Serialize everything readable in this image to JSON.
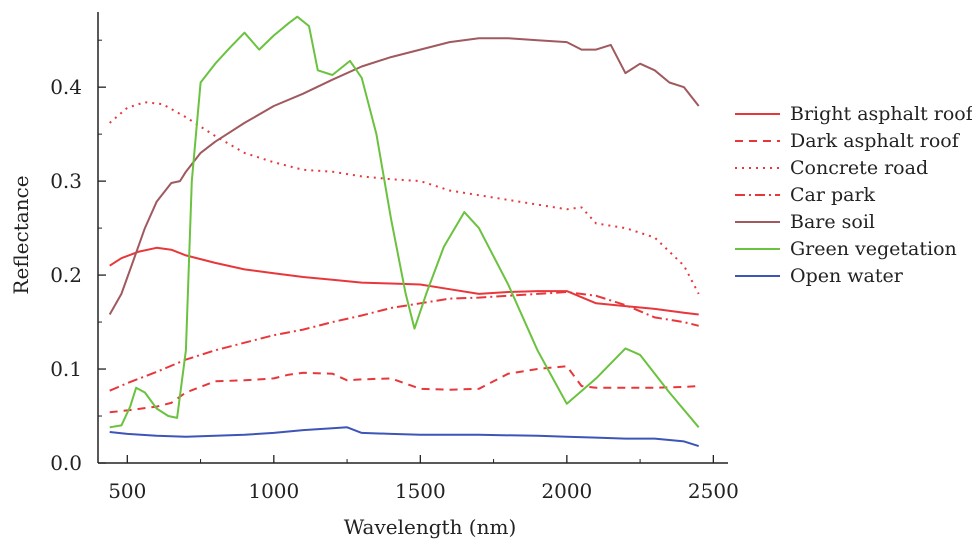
{
  "chart_data": {
    "type": "line",
    "title": "",
    "xlabel": "Wavelength (nm)",
    "ylabel": "Reflectance",
    "xlim": [
      400,
      2550
    ],
    "ylim": [
      0,
      0.48
    ],
    "xticks": [
      500,
      1000,
      1500,
      2000,
      2500
    ],
    "xtick_labels": [
      "500",
      "1000",
      "1500",
      "2000",
      "2500"
    ],
    "yticks": [
      0.0,
      0.1,
      0.2,
      0.3,
      0.4
    ],
    "ytick_labels": [
      "0.0",
      "0.1",
      "0.2",
      "0.3",
      "0.4"
    ],
    "grid": false,
    "legend_position": "right",
    "series": [
      {
        "name": "Bright asphalt roof",
        "color": "#e8373b",
        "dash": "solid",
        "points": [
          [
            440,
            0.21
          ],
          [
            480,
            0.218
          ],
          [
            540,
            0.225
          ],
          [
            600,
            0.229
          ],
          [
            650,
            0.227
          ],
          [
            700,
            0.221
          ],
          [
            800,
            0.213
          ],
          [
            900,
            0.206
          ],
          [
            1000,
            0.202
          ],
          [
            1100,
            0.198
          ],
          [
            1200,
            0.195
          ],
          [
            1300,
            0.192
          ],
          [
            1400,
            0.191
          ],
          [
            1500,
            0.19
          ],
          [
            1600,
            0.185
          ],
          [
            1700,
            0.18
          ],
          [
            1800,
            0.182
          ],
          [
            1900,
            0.183
          ],
          [
            2000,
            0.183
          ],
          [
            2100,
            0.17
          ],
          [
            2200,
            0.167
          ],
          [
            2300,
            0.164
          ],
          [
            2400,
            0.16
          ],
          [
            2450,
            0.158
          ]
        ]
      },
      {
        "name": "Dark asphalt roof",
        "color": "#e8373b",
        "dash": "8,6",
        "points": [
          [
            440,
            0.054
          ],
          [
            500,
            0.056
          ],
          [
            600,
            0.06
          ],
          [
            650,
            0.064
          ],
          [
            700,
            0.075
          ],
          [
            800,
            0.087
          ],
          [
            900,
            0.088
          ],
          [
            1000,
            0.09
          ],
          [
            1050,
            0.094
          ],
          [
            1100,
            0.096
          ],
          [
            1200,
            0.095
          ],
          [
            1250,
            0.088
          ],
          [
            1300,
            0.089
          ],
          [
            1400,
            0.09
          ],
          [
            1500,
            0.079
          ],
          [
            1600,
            0.078
          ],
          [
            1700,
            0.079
          ],
          [
            1800,
            0.095
          ],
          [
            1900,
            0.1
          ],
          [
            2000,
            0.103
          ],
          [
            2050,
            0.082
          ],
          [
            2100,
            0.08
          ],
          [
            2200,
            0.08
          ],
          [
            2300,
            0.08
          ],
          [
            2400,
            0.081
          ],
          [
            2450,
            0.082
          ]
        ]
      },
      {
        "name": "Concrete road",
        "color": "#e8373b",
        "dash": "2,5",
        "points": [
          [
            440,
            0.362
          ],
          [
            500,
            0.378
          ],
          [
            560,
            0.384
          ],
          [
            620,
            0.382
          ],
          [
            700,
            0.368
          ],
          [
            800,
            0.348
          ],
          [
            900,
            0.33
          ],
          [
            1000,
            0.32
          ],
          [
            1100,
            0.312
          ],
          [
            1200,
            0.31
          ],
          [
            1300,
            0.305
          ],
          [
            1400,
            0.302
          ],
          [
            1500,
            0.3
          ],
          [
            1600,
            0.29
          ],
          [
            1700,
            0.285
          ],
          [
            1800,
            0.28
          ],
          [
            1900,
            0.275
          ],
          [
            2000,
            0.27
          ],
          [
            2050,
            0.272
          ],
          [
            2100,
            0.255
          ],
          [
            2200,
            0.25
          ],
          [
            2300,
            0.24
          ],
          [
            2400,
            0.21
          ],
          [
            2450,
            0.18
          ]
        ]
      },
      {
        "name": "Car park",
        "color": "#e8373b",
        "dash": "10,4,2,4",
        "points": [
          [
            440,
            0.077
          ],
          [
            500,
            0.085
          ],
          [
            600,
            0.097
          ],
          [
            700,
            0.11
          ],
          [
            800,
            0.12
          ],
          [
            900,
            0.128
          ],
          [
            1000,
            0.136
          ],
          [
            1100,
            0.142
          ],
          [
            1200,
            0.15
          ],
          [
            1300,
            0.157
          ],
          [
            1400,
            0.165
          ],
          [
            1500,
            0.17
          ],
          [
            1600,
            0.175
          ],
          [
            1700,
            0.176
          ],
          [
            1800,
            0.178
          ],
          [
            1900,
            0.18
          ],
          [
            2000,
            0.182
          ],
          [
            2100,
            0.178
          ],
          [
            2200,
            0.168
          ],
          [
            2300,
            0.155
          ],
          [
            2400,
            0.15
          ],
          [
            2450,
            0.146
          ]
        ]
      },
      {
        "name": "Bare soil",
        "color": "#a0595e",
        "dash": "solid",
        "points": [
          [
            440,
            0.158
          ],
          [
            480,
            0.18
          ],
          [
            520,
            0.215
          ],
          [
            560,
            0.25
          ],
          [
            600,
            0.278
          ],
          [
            650,
            0.298
          ],
          [
            680,
            0.3
          ],
          [
            700,
            0.31
          ],
          [
            750,
            0.33
          ],
          [
            800,
            0.342
          ],
          [
            900,
            0.362
          ],
          [
            1000,
            0.38
          ],
          [
            1100,
            0.393
          ],
          [
            1200,
            0.408
          ],
          [
            1300,
            0.422
          ],
          [
            1400,
            0.432
          ],
          [
            1500,
            0.44
          ],
          [
            1600,
            0.448
          ],
          [
            1700,
            0.452
          ],
          [
            1800,
            0.452
          ],
          [
            1900,
            0.45
          ],
          [
            2000,
            0.448
          ],
          [
            2050,
            0.44
          ],
          [
            2100,
            0.44
          ],
          [
            2150,
            0.445
          ],
          [
            2200,
            0.415
          ],
          [
            2250,
            0.425
          ],
          [
            2300,
            0.418
          ],
          [
            2350,
            0.405
          ],
          [
            2400,
            0.4
          ],
          [
            2450,
            0.38
          ]
        ]
      },
      {
        "name": "Green vegetation",
        "color": "#6ac23f",
        "dash": "solid",
        "points": [
          [
            440,
            0.038
          ],
          [
            480,
            0.04
          ],
          [
            510,
            0.06
          ],
          [
            530,
            0.08
          ],
          [
            560,
            0.075
          ],
          [
            600,
            0.058
          ],
          [
            640,
            0.05
          ],
          [
            670,
            0.048
          ],
          [
            700,
            0.12
          ],
          [
            720,
            0.3
          ],
          [
            750,
            0.405
          ],
          [
            800,
            0.425
          ],
          [
            850,
            0.442
          ],
          [
            900,
            0.458
          ],
          [
            950,
            0.44
          ],
          [
            1000,
            0.455
          ],
          [
            1050,
            0.468
          ],
          [
            1080,
            0.475
          ],
          [
            1120,
            0.465
          ],
          [
            1150,
            0.418
          ],
          [
            1200,
            0.413
          ],
          [
            1260,
            0.428
          ],
          [
            1300,
            0.41
          ],
          [
            1350,
            0.35
          ],
          [
            1400,
            0.26
          ],
          [
            1450,
            0.18
          ],
          [
            1480,
            0.143
          ],
          [
            1520,
            0.18
          ],
          [
            1580,
            0.23
          ],
          [
            1650,
            0.267
          ],
          [
            1700,
            0.25
          ],
          [
            1800,
            0.19
          ],
          [
            1900,
            0.12
          ],
          [
            2000,
            0.063
          ],
          [
            2100,
            0.09
          ],
          [
            2200,
            0.122
          ],
          [
            2250,
            0.115
          ],
          [
            2350,
            0.075
          ],
          [
            2450,
            0.038
          ]
        ]
      },
      {
        "name": "Open water",
        "color": "#3e55b8",
        "dash": "solid",
        "points": [
          [
            440,
            0.033
          ],
          [
            500,
            0.031
          ],
          [
            600,
            0.029
          ],
          [
            700,
            0.028
          ],
          [
            800,
            0.029
          ],
          [
            900,
            0.03
          ],
          [
            1000,
            0.032
          ],
          [
            1100,
            0.035
          ],
          [
            1200,
            0.037
          ],
          [
            1250,
            0.038
          ],
          [
            1300,
            0.032
          ],
          [
            1400,
            0.031
          ],
          [
            1500,
            0.03
          ],
          [
            1700,
            0.03
          ],
          [
            1900,
            0.029
          ],
          [
            2000,
            0.028
          ],
          [
            2100,
            0.027
          ],
          [
            2200,
            0.026
          ],
          [
            2300,
            0.026
          ],
          [
            2400,
            0.023
          ],
          [
            2450,
            0.018
          ]
        ]
      }
    ]
  }
}
